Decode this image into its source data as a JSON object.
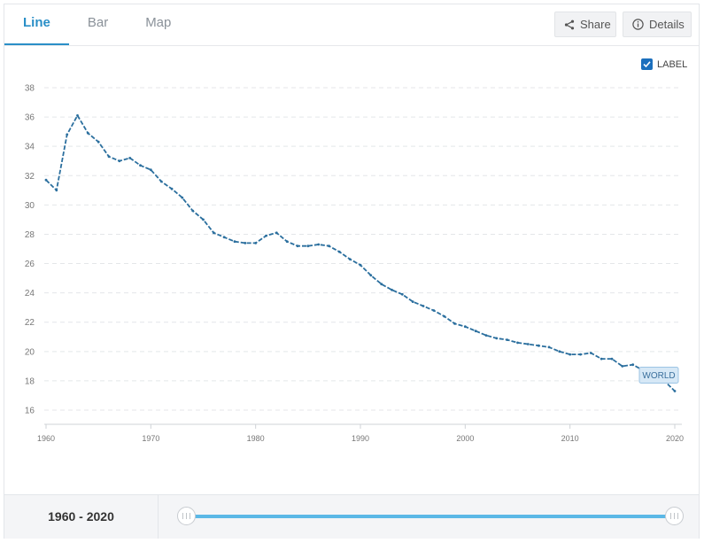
{
  "tabs": [
    {
      "label": "Line",
      "active": true
    },
    {
      "label": "Bar",
      "active": false
    },
    {
      "label": "Map",
      "active": false
    }
  ],
  "toolbar": {
    "share_label": "Share",
    "share_icon": "share-icon",
    "details_label": "Details",
    "details_icon": "info-icon"
  },
  "label_toggle": {
    "label": "LABEL",
    "checked": true
  },
  "colors": {
    "accent": "#2a8fc7",
    "series": "#2b6f9e",
    "range": "#5bb8e6"
  },
  "footer": {
    "range_label": "1960 - 2020"
  },
  "chart_data": {
    "type": "line",
    "title": "",
    "xlabel": "",
    "ylabel": "",
    "xlim": [
      1960,
      2020
    ],
    "ylim": [
      15,
      38
    ],
    "grid": true,
    "x_ticks": [
      1960,
      1970,
      1980,
      1990,
      2000,
      2010,
      2020
    ],
    "y_ticks": [
      16,
      18,
      20,
      22,
      24,
      26,
      28,
      30,
      32,
      34,
      36,
      38
    ],
    "series": [
      {
        "name": "WORLD",
        "x": [
          1960,
          1961,
          1962,
          1963,
          1964,
          1965,
          1966,
          1967,
          1968,
          1969,
          1970,
          1971,
          1972,
          1973,
          1974,
          1975,
          1976,
          1977,
          1978,
          1979,
          1980,
          1981,
          1982,
          1983,
          1984,
          1985,
          1986,
          1987,
          1988,
          1989,
          1990,
          1991,
          1992,
          1993,
          1994,
          1995,
          1996,
          1997,
          1998,
          1999,
          2000,
          2001,
          2002,
          2003,
          2004,
          2005,
          2006,
          2007,
          2008,
          2009,
          2010,
          2011,
          2012,
          2013,
          2014,
          2015,
          2016,
          2017,
          2018,
          2019,
          2020
        ],
        "values": [
          31.7,
          31.0,
          34.8,
          36.1,
          34.9,
          34.3,
          33.3,
          33.0,
          33.2,
          32.7,
          32.4,
          31.6,
          31.1,
          30.5,
          29.6,
          29.0,
          28.1,
          27.8,
          27.5,
          27.4,
          27.4,
          27.9,
          28.1,
          27.5,
          27.2,
          27.2,
          27.3,
          27.2,
          26.8,
          26.3,
          25.9,
          25.2,
          24.6,
          24.2,
          23.9,
          23.4,
          23.1,
          22.8,
          22.4,
          21.9,
          21.7,
          21.4,
          21.1,
          20.9,
          20.8,
          20.6,
          20.5,
          20.4,
          20.3,
          20.0,
          19.8,
          19.8,
          19.9,
          19.5,
          19.5,
          19.0,
          19.1,
          18.7,
          18.4,
          18.0,
          17.3
        ]
      }
    ]
  }
}
